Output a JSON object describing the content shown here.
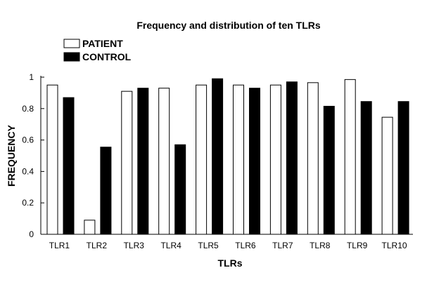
{
  "chart_data": {
    "type": "bar",
    "title": "Frequency and distribution of ten TLRs",
    "xlabel": "TLRs",
    "ylabel": "FREQUENCY",
    "categories": [
      "TLR1",
      "TLR2",
      "TLR3",
      "TLR4",
      "TLR5",
      "TLR6",
      "TLR7",
      "TLR8",
      "TLR9",
      "TLR10"
    ],
    "series": [
      {
        "name": "PATIENT",
        "color": "#ffffff",
        "values": [
          0.95,
          0.09,
          0.91,
          0.93,
          0.95,
          0.95,
          0.95,
          0.965,
          0.985,
          0.745
        ]
      },
      {
        "name": "CONTROL",
        "color": "#000000",
        "values": [
          0.87,
          0.555,
          0.93,
          0.57,
          0.99,
          0.93,
          0.97,
          0.815,
          0.845,
          0.845
        ]
      }
    ],
    "ylim": [
      0,
      1
    ],
    "yticks": [
      "0",
      "0.2",
      "0.4",
      "0.6",
      "0.8",
      "1"
    ],
    "legend_position": "top-left",
    "grid": false
  }
}
